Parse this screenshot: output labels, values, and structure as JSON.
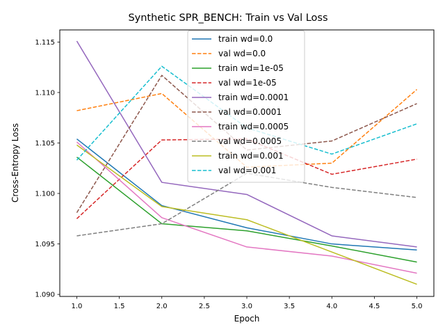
{
  "chart_data": {
    "type": "line",
    "title": "Synthetic SPR_BENCH: Train vs Val Loss",
    "xlabel": "Epoch",
    "ylabel": "Cross-Entropy Loss",
    "x": [
      1,
      2,
      3,
      4,
      5
    ],
    "xlim": [
      0.8,
      5.2
    ],
    "ylim": [
      1.0898,
      1.1162
    ],
    "xticks": [
      "1.0",
      "1.5",
      "2.0",
      "2.5",
      "3.0",
      "3.5",
      "4.0",
      "4.5",
      "5.0"
    ],
    "yticks": [
      "1.090",
      "1.095",
      "1.100",
      "1.105",
      "1.110",
      "1.115"
    ],
    "grid": false,
    "legend_position": "upper center",
    "series": [
      {
        "name": "train wd=0.0",
        "color": "#1f77b4",
        "dashed": false,
        "values": [
          1.1054,
          1.0988,
          1.0966,
          1.095,
          1.0944
        ]
      },
      {
        "name": "val wd=0.0",
        "color": "#ff7f0e",
        "dashed": true,
        "values": [
          1.1082,
          1.1099,
          1.1026,
          1.103,
          1.1103
        ]
      },
      {
        "name": "train wd=1e-05",
        "color": "#2ca02c",
        "dashed": false,
        "values": [
          1.1036,
          1.097,
          1.0963,
          1.0948,
          1.0932
        ]
      },
      {
        "name": "val wd=1e-05",
        "color": "#d62728",
        "dashed": true,
        "values": [
          1.0975,
          1.1053,
          1.1054,
          1.1019,
          1.1034
        ]
      },
      {
        "name": "train wd=0.0001",
        "color": "#9467bd",
        "dashed": false,
        "values": [
          1.1151,
          1.1011,
          1.0999,
          1.0958,
          1.0947
        ]
      },
      {
        "name": "val wd=0.0001",
        "color": "#8c564b",
        "dashed": true,
        "values": [
          1.0981,
          1.1117,
          1.1043,
          1.1052,
          1.1089
        ]
      },
      {
        "name": "train wd=0.0005",
        "color": "#e377c2",
        "dashed": false,
        "values": [
          1.1051,
          1.0976,
          1.0947,
          1.0938,
          1.0921
        ]
      },
      {
        "name": "val wd=0.0005",
        "color": "#7f7f7f",
        "dashed": true,
        "values": [
          1.0958,
          1.097,
          1.102,
          1.1006,
          1.0996
        ]
      },
      {
        "name": "train wd=0.001",
        "color": "#bcbd22",
        "dashed": false,
        "values": [
          1.1048,
          1.0987,
          1.0974,
          1.0942,
          1.091
        ]
      },
      {
        "name": "val wd=0.001",
        "color": "#17becf",
        "dashed": true,
        "values": [
          1.1033,
          1.1126,
          1.1065,
          1.1039,
          1.1069
        ]
      }
    ]
  }
}
